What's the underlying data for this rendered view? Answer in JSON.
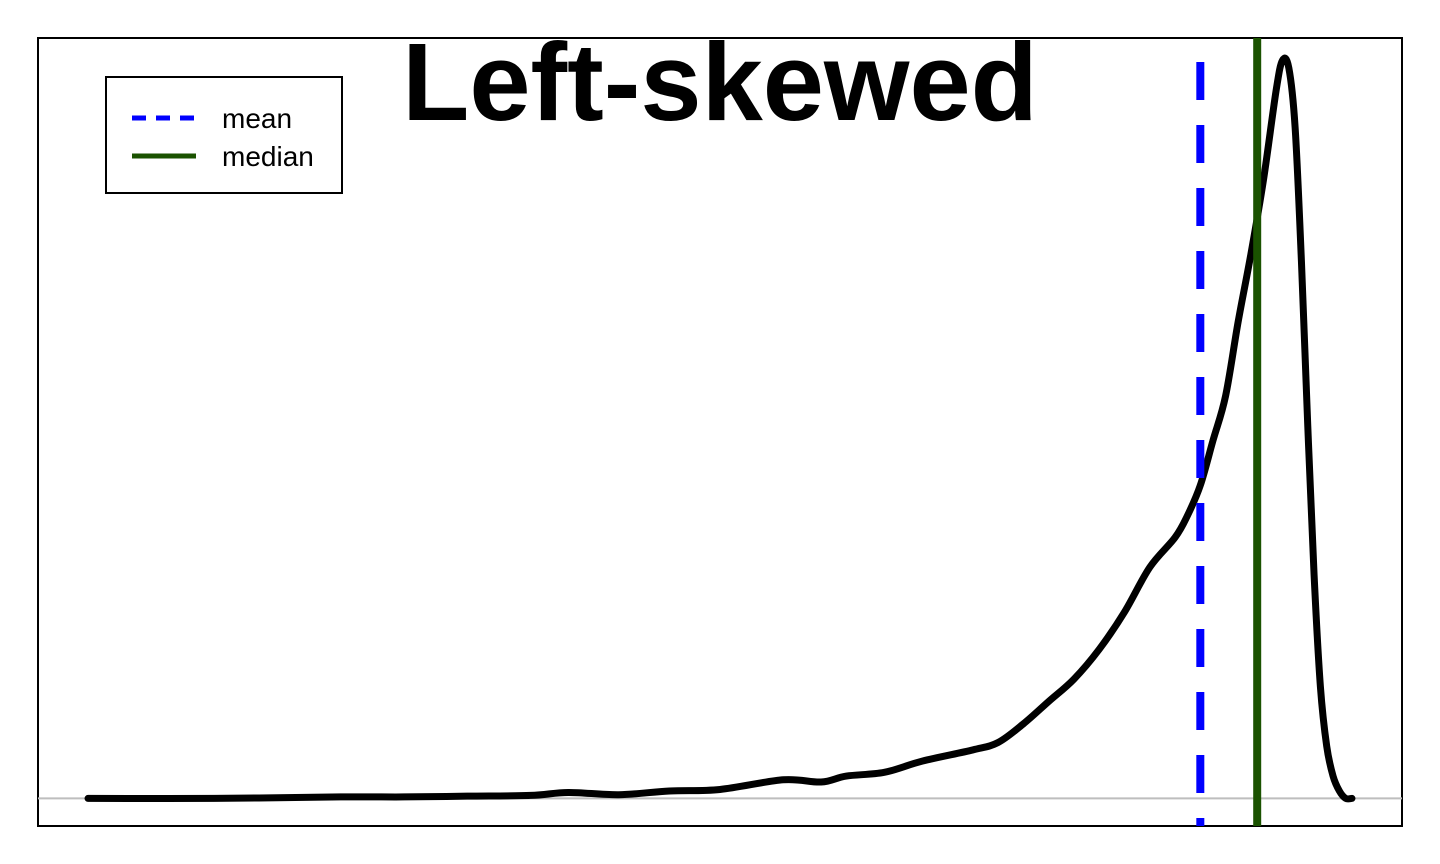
{
  "chart_data": {
    "type": "line",
    "title": "Left-skewed",
    "xlabel": "",
    "ylabel": "",
    "axes_ticks": "none",
    "grid": false,
    "baseline_color": "#bebebe",
    "legend": {
      "placement": "top-left",
      "entries": [
        {
          "label": "mean",
          "color": "#0000ff",
          "style": "dashed"
        },
        {
          "label": "median",
          "color": "#1a5200",
          "style": "solid"
        }
      ]
    },
    "xlim": [
      0,
      1.04
    ],
    "ylim": [
      -0.037,
      1.02
    ],
    "density": {
      "color": "#000000",
      "x": [
        0.0,
        0.1,
        0.2,
        0.25,
        0.3,
        0.35,
        0.38,
        0.42,
        0.46,
        0.5,
        0.55,
        0.58,
        0.6,
        0.63,
        0.66,
        0.7,
        0.72,
        0.74,
        0.76,
        0.78,
        0.8,
        0.82,
        0.84,
        0.86,
        0.87,
        0.88,
        0.89,
        0.9,
        0.91,
        0.92,
        0.93,
        0.94,
        0.945,
        0.95,
        0.955,
        0.96,
        0.965,
        0.97,
        0.975,
        0.98,
        0.985,
        0.99,
        0.995,
        1.0
      ],
      "y": [
        0.0,
        0.0,
        0.002,
        0.002,
        0.003,
        0.004,
        0.008,
        0.005,
        0.01,
        0.012,
        0.025,
        0.022,
        0.03,
        0.035,
        0.05,
        0.065,
        0.075,
        0.1,
        0.13,
        0.16,
        0.2,
        0.25,
        0.31,
        0.35,
        0.38,
        0.42,
        0.48,
        0.54,
        0.64,
        0.73,
        0.83,
        0.95,
        0.99,
        0.98,
        0.9,
        0.72,
        0.5,
        0.3,
        0.15,
        0.07,
        0.03,
        0.01,
        0.0,
        0.0
      ]
    },
    "mean": 0.88,
    "median": 0.925
  }
}
